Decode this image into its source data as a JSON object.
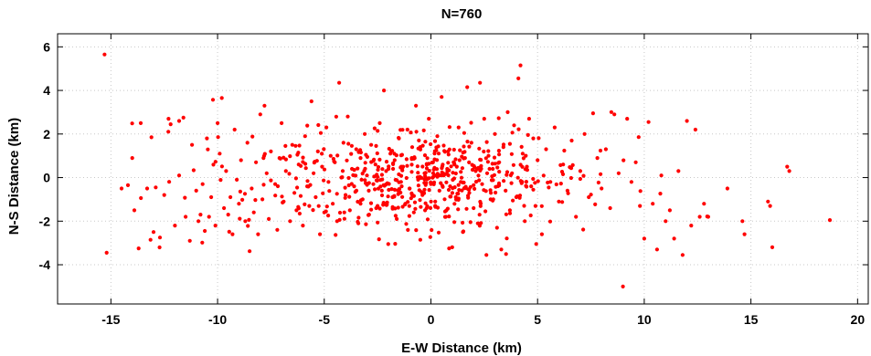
{
  "chart_data": {
    "type": "scatter",
    "title": "N=760",
    "xlabel": "E-W Distance (km)",
    "ylabel": "N-S Distance (km)",
    "xlim": [
      -17.5,
      20.5
    ],
    "ylim": [
      -5.8,
      6.6
    ],
    "xticks": [
      -15,
      -10,
      -5,
      0,
      5,
      10,
      15,
      20
    ],
    "yticks": [
      -4,
      -2,
      0,
      2,
      4,
      6
    ],
    "grid": true,
    "point_color": "#ff0000",
    "point_count_shown": 760,
    "series": [
      {
        "points": [
          [
            -15.3,
            5.65
          ],
          [
            -15.2,
            -3.45
          ],
          [
            -14.5,
            -0.5
          ],
          [
            -14.2,
            -0.35
          ],
          [
            -14.0,
            0.9
          ],
          [
            -13.9,
            -1.5
          ],
          [
            -13.7,
            -3.25
          ],
          [
            -13.6,
            2.5
          ],
          [
            -13.3,
            -0.5
          ],
          [
            -13.1,
            1.85
          ],
          [
            -13.0,
            -2.5
          ],
          [
            -12.9,
            -0.45
          ],
          [
            -12.7,
            -2.75
          ],
          [
            -12.5,
            -0.8
          ],
          [
            -12.3,
            2.7
          ],
          [
            -12.2,
            2.45
          ],
          [
            -12.0,
            -2.2
          ],
          [
            -11.8,
            2.6
          ],
          [
            -11.8,
            0.1
          ],
          [
            -11.6,
            2.75
          ],
          [
            -11.5,
            -1.8
          ],
          [
            -11.3,
            -2.9
          ],
          [
            -11.2,
            1.5
          ],
          [
            -11.0,
            -0.6
          ],
          [
            -10.9,
            -2.0
          ],
          [
            -10.8,
            -1.7
          ],
          [
            -10.7,
            -0.3
          ],
          [
            -10.6,
            -2.45
          ],
          [
            -10.5,
            1.8
          ],
          [
            -10.4,
            -1.8
          ],
          [
            -10.3,
            -0.9
          ],
          [
            -10.1,
            -2.2
          ],
          [
            -10.0,
            2.5
          ],
          [
            -9.9,
            1.1
          ],
          [
            -9.8,
            3.65
          ],
          [
            -9.7,
            -1.4
          ],
          [
            -9.6,
            0.3
          ],
          [
            -9.5,
            -1.7
          ],
          [
            -9.4,
            -0.9
          ],
          [
            -9.3,
            -2.6
          ],
          [
            -9.2,
            2.2
          ],
          [
            -9.1,
            -0.1
          ],
          [
            -9.0,
            -1.2
          ],
          [
            -8.9,
            0.8
          ],
          [
            -8.7,
            -2.0
          ],
          [
            -8.6,
            1.6
          ],
          [
            -8.4,
            -0.5
          ],
          [
            -8.3,
            -1.6
          ],
          [
            -8.2,
            0.7
          ],
          [
            -8.1,
            -2.6
          ],
          [
            -8.0,
            2.9
          ],
          [
            -7.9,
            -1.0
          ],
          [
            -7.8,
            3.3
          ],
          [
            -7.7,
            0.2
          ],
          [
            -7.6,
            -1.9
          ],
          [
            -7.5,
            1.2
          ],
          [
            -7.3,
            -0.3
          ],
          [
            -7.2,
            -2.4
          ],
          [
            -7.1,
            0.9
          ],
          [
            -7.0,
            2.5
          ],
          [
            -6.9,
            -1.1
          ],
          [
            -6.8,
            0.3
          ],
          [
            -6.6,
            -2.0
          ],
          [
            -6.5,
            1.5
          ],
          [
            -6.4,
            -0.7
          ],
          [
            -6.3,
            -1.5
          ],
          [
            -6.2,
            0.6
          ],
          [
            -6.0,
            -2.2
          ],
          [
            -5.9,
            1.9
          ],
          [
            -5.8,
            -0.4
          ],
          [
            -5.7,
            -1.3
          ],
          [
            -5.6,
            3.5
          ],
          [
            -5.5,
            0.2
          ],
          [
            -5.4,
            -0.9
          ],
          [
            -5.3,
            1.2
          ],
          [
            -5.2,
            -2.6
          ],
          [
            -5.1,
            0.5
          ],
          [
            -5.0,
            -1.6
          ],
          [
            -4.9,
            2.3
          ],
          [
            -4.8,
            -0.2
          ],
          [
            -4.7,
            1.0
          ],
          [
            -4.6,
            -1.2
          ],
          [
            -4.5,
            0.7
          ],
          [
            -4.4,
            -2.0
          ],
          [
            -4.3,
            4.35
          ],
          [
            -4.2,
            0.0
          ],
          [
            -4.1,
            1.6
          ],
          [
            -4.0,
            -0.8
          ],
          [
            -3.9,
            2.8
          ],
          [
            -3.8,
            -1.5
          ],
          [
            -3.7,
            0.4
          ],
          [
            -3.6,
            -0.4
          ],
          [
            -3.5,
            1.3
          ],
          [
            -3.4,
            -2.1
          ],
          [
            -3.3,
            0.9
          ],
          [
            -3.2,
            -1.0
          ],
          [
            -3.1,
            2.0
          ],
          [
            -3.0,
            0.1
          ],
          [
            -2.9,
            -1.7
          ],
          [
            -2.8,
            1.5
          ],
          [
            -2.7,
            -0.3
          ],
          [
            -2.6,
            0.6
          ],
          [
            -2.5,
            -1.3
          ],
          [
            -2.4,
            2.5
          ],
          [
            -2.3,
            -0.6
          ],
          [
            -2.2,
            4.0
          ],
          [
            -2.1,
            0.3
          ],
          [
            -2.0,
            -3.05
          ],
          [
            -1.9,
            1.1
          ],
          [
            -1.8,
            -0.9
          ],
          [
            -1.7,
            0.8
          ],
          [
            -1.6,
            -1.9
          ],
          [
            -1.5,
            1.8
          ],
          [
            -1.4,
            -0.2
          ],
          [
            -1.3,
            0.5
          ],
          [
            -1.2,
            -1.2
          ],
          [
            -1.1,
            2.2
          ],
          [
            -1.0,
            -0.5
          ],
          [
            -0.9,
            0.9
          ],
          [
            -0.8,
            -1.6
          ],
          [
            -0.7,
            3.3
          ],
          [
            -0.6,
            -0.1
          ],
          [
            -0.5,
            1.4
          ],
          [
            -0.4,
            -0.8
          ],
          [
            -0.3,
            0.2
          ],
          [
            -0.2,
            -1.4
          ],
          [
            -0.1,
            2.7
          ],
          [
            0.0,
            -0.3
          ],
          [
            0.1,
            0.7
          ],
          [
            0.2,
            -1.1
          ],
          [
            0.3,
            1.9
          ],
          [
            0.4,
            -0.6
          ],
          [
            0.5,
            3.7
          ],
          [
            0.6,
            0.1
          ],
          [
            0.7,
            -1.8
          ],
          [
            0.8,
            1.2
          ],
          [
            0.9,
            -0.4
          ],
          [
            1.0,
            -3.2
          ],
          [
            1.1,
            0.6
          ],
          [
            1.2,
            -1.0
          ],
          [
            1.3,
            2.3
          ],
          [
            1.4,
            -0.2
          ],
          [
            1.5,
            -2.5
          ],
          [
            1.6,
            0.9
          ],
          [
            1.7,
            4.15
          ],
          [
            1.8,
            -0.7
          ],
          [
            1.9,
            1.6
          ],
          [
            2.0,
            -1.4
          ],
          [
            2.1,
            0.3
          ],
          [
            2.2,
            -2.1
          ],
          [
            2.3,
            4.35
          ],
          [
            2.4,
            -0.3
          ],
          [
            2.5,
            2.7
          ],
          [
            2.6,
            -3.55
          ],
          [
            2.7,
            1.0
          ],
          [
            2.8,
            -1.0
          ],
          [
            2.9,
            0.4
          ],
          [
            3.0,
            2.0
          ],
          [
            3.1,
            -2.3
          ],
          [
            3.2,
            0.7
          ],
          [
            3.3,
            -3.3
          ],
          [
            3.4,
            1.4
          ],
          [
            3.5,
            -0.6
          ],
          [
            3.6,
            3.0
          ],
          [
            3.7,
            -1.5
          ],
          [
            3.8,
            0.2
          ],
          [
            3.9,
            2.4
          ],
          [
            4.0,
            -0.9
          ],
          [
            4.1,
            4.55
          ],
          [
            4.2,
            5.15
          ],
          [
            4.3,
            1.1
          ],
          [
            4.4,
            -2.0
          ],
          [
            4.5,
            0.5
          ],
          [
            4.6,
            2.7
          ],
          [
            4.7,
            -0.4
          ],
          [
            4.8,
            1.8
          ],
          [
            4.9,
            -1.3
          ],
          [
            5.0,
            0.8
          ],
          [
            5.2,
            -2.6
          ],
          [
            5.4,
            1.3
          ],
          [
            5.6,
            -0.2
          ],
          [
            5.8,
            2.3
          ],
          [
            6.0,
            -1.1
          ],
          [
            6.2,
            0.6
          ],
          [
            6.4,
            -0.6
          ],
          [
            6.6,
            1.7
          ],
          [
            6.8,
            -1.8
          ],
          [
            7.0,
            0.3
          ],
          [
            7.2,
            2.0
          ],
          [
            7.4,
            -0.9
          ],
          [
            7.6,
            2.95
          ],
          [
            7.8,
            0.9
          ],
          [
            8.0,
            -0.5
          ],
          [
            8.2,
            1.3
          ],
          [
            8.4,
            -1.4
          ],
          [
            8.6,
            2.9
          ],
          [
            8.8,
            0.2
          ],
          [
            9.0,
            -5.0
          ],
          [
            9.2,
            2.7
          ],
          [
            9.4,
            -0.2
          ],
          [
            9.6,
            0.7
          ],
          [
            9.8,
            -1.3
          ],
          [
            10.0,
            -2.8
          ],
          [
            10.2,
            2.55
          ],
          [
            10.4,
            -1.2
          ],
          [
            10.6,
            -3.3
          ],
          [
            10.8,
            0.1
          ],
          [
            11.0,
            -2.0
          ],
          [
            11.2,
            -1.5
          ],
          [
            11.4,
            -2.8
          ],
          [
            11.6,
            0.3
          ],
          [
            11.8,
            -3.55
          ],
          [
            12.0,
            2.6
          ],
          [
            12.2,
            -2.2
          ],
          [
            12.4,
            2.2
          ],
          [
            12.6,
            -1.8
          ],
          [
            12.8,
            -1.2
          ],
          [
            13.0,
            -1.8
          ],
          [
            13.9,
            -0.5
          ],
          [
            14.6,
            -2.0
          ],
          [
            14.7,
            -2.6
          ],
          [
            15.8,
            -1.1
          ],
          [
            15.9,
            -1.3
          ],
          [
            16.0,
            -3.2
          ],
          [
            16.7,
            0.5
          ],
          [
            16.8,
            0.3
          ],
          [
            18.7,
            -1.95
          ]
        ]
      }
    ]
  }
}
